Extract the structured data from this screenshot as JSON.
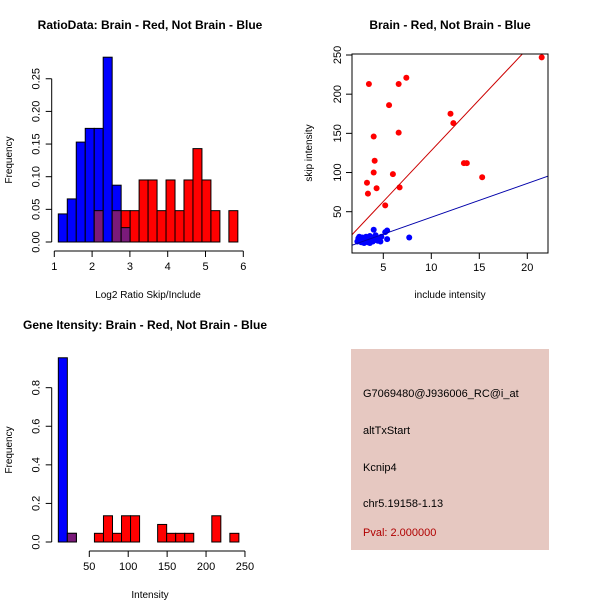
{
  "colors": {
    "brain": "#ff0000",
    "not_brain": "#0000ff",
    "overlap": "#7a1a7a",
    "info_bg": "#e6c8c1",
    "pval": "#b00000"
  },
  "chart_data": [
    {
      "type": "bar",
      "subtype": "histogram",
      "title": "RatioData: Brain - Red, Not Brain - Blue",
      "xlabel": "Log2 Ratio Skip/Include",
      "ylabel": "Frequency",
      "xlim": [
        1,
        6
      ],
      "ylim": [
        0,
        0.28
      ],
      "xticks": [
        "1",
        "2",
        "3",
        "4",
        "5",
        "6"
      ],
      "yticks": [
        "0.00",
        "0.05",
        "0.10",
        "0.15",
        "0.20",
        "0.25"
      ],
      "bin_start": 1.106,
      "bin_width": 0.2375,
      "series": [
        {
          "name": "Not Brain",
          "color": "blue",
          "values": [
            0.043,
            0.066,
            0.153,
            0.174,
            0.174,
            0.283,
            0.087,
            0.022,
            0,
            0,
            0,
            0,
            0,
            0,
            0,
            0,
            0,
            0,
            0,
            0
          ]
        },
        {
          "name": "Brain",
          "color": "red",
          "values": [
            0,
            0,
            0,
            0,
            0.048,
            0,
            0.048,
            0.048,
            0.048,
            0.095,
            0.095,
            0.048,
            0.095,
            0.048,
            0.095,
            0.143,
            0.095,
            0.048,
            0,
            0.048
          ]
        }
      ]
    },
    {
      "type": "scatter",
      "title": "Brain - Red, Not Brain - Blue",
      "xlabel": "include intensity",
      "ylabel": "skip intensity",
      "xlim": [
        1.7,
        22.2
      ],
      "ylim": [
        -3,
        251
      ],
      "xticks": [
        "5",
        "10",
        "15",
        "20"
      ],
      "yticks": [
        "50",
        "100",
        "150",
        "200",
        "250"
      ],
      "series": [
        {
          "name": "Brain",
          "color": "red",
          "points": [
            [
              3.5,
              213
            ],
            [
              6.6,
              213
            ],
            [
              7.4,
              221
            ],
            [
              5.6,
              186
            ],
            [
              12.0,
              175
            ],
            [
              12.3,
              163
            ],
            [
              4.0,
              146
            ],
            [
              6.6,
              151
            ],
            [
              4.1,
              115
            ],
            [
              4.0,
              100
            ],
            [
              6.0,
              98
            ],
            [
              3.3,
              87
            ],
            [
              3.4,
              73
            ],
            [
              4.3,
              80
            ],
            [
              6.7,
              81
            ],
            [
              5.2,
              58
            ],
            [
              13.4,
              112
            ],
            [
              13.7,
              112
            ],
            [
              15.3,
              94
            ],
            [
              21.5,
              247
            ]
          ],
          "fit": {
            "slope": 13.0,
            "intercept": -2
          }
        },
        {
          "name": "Not Brain",
          "color": "blue",
          "points": [
            [
              2.3,
              12
            ],
            [
              2.4,
              16
            ],
            [
              2.6,
              14
            ],
            [
              2.7,
              11
            ],
            [
              2.8,
              17
            ],
            [
              2.9,
              13
            ],
            [
              3.0,
              15
            ],
            [
              3.1,
              12
            ],
            [
              3.2,
              18
            ],
            [
              3.3,
              14
            ],
            [
              3.4,
              11
            ],
            [
              3.5,
              16
            ],
            [
              3.6,
              19
            ],
            [
              3.7,
              13
            ],
            [
              3.8,
              15
            ],
            [
              3.9,
              12
            ],
            [
              4.0,
              17
            ],
            [
              4.1,
              14
            ],
            [
              4.2,
              20
            ],
            [
              4.4,
              13
            ],
            [
              4.5,
              16
            ],
            [
              4.7,
              12
            ],
            [
              4.8,
              18
            ],
            [
              2.5,
              18
            ],
            [
              3.0,
              10
            ],
            [
              3.6,
              10
            ],
            [
              4.0,
              27
            ],
            [
              5.4,
              26
            ],
            [
              5.4,
              15
            ],
            [
              7.7,
              17
            ],
            [
              5.2,
              24
            ]
          ],
          "fit": {
            "slope": 4.32,
            "intercept": -0.3
          }
        }
      ]
    },
    {
      "type": "bar",
      "subtype": "histogram",
      "title": "Gene Itensity: Brain - Red, Not Brain - Blue",
      "xlabel": "Intensity",
      "ylabel": "Frequency",
      "xlim": [
        50,
        250
      ],
      "ylim": [
        0,
        0.96
      ],
      "xticks": [
        "50",
        "100",
        "150",
        "200",
        "250"
      ],
      "yticks": [
        "0.0",
        "0.2",
        "0.4",
        "0.6",
        "0.8"
      ],
      "bin_start": 10.2,
      "bin_width": 11.6,
      "series": [
        {
          "name": "Not Brain",
          "color": "blue",
          "values": [
            0.955,
            0.045,
            0,
            0,
            0,
            0,
            0,
            0,
            0,
            0,
            0,
            0,
            0,
            0,
            0,
            0,
            0,
            0,
            0,
            0
          ]
        },
        {
          "name": "Brain",
          "color": "red",
          "values": [
            0,
            0.045,
            0,
            0,
            0.045,
            0.136,
            0.045,
            0.136,
            0.136,
            0,
            0,
            0.091,
            0.045,
            0.045,
            0.045,
            0,
            0,
            0.136,
            0,
            0.045
          ]
        }
      ]
    }
  ],
  "info": {
    "probe": "G7069480@J936006_RC@i_at",
    "event": "altTxStart",
    "gene": "Kcnip4",
    "location": "chr5.19158-1.13",
    "pval": "Pval: 2.000000"
  }
}
